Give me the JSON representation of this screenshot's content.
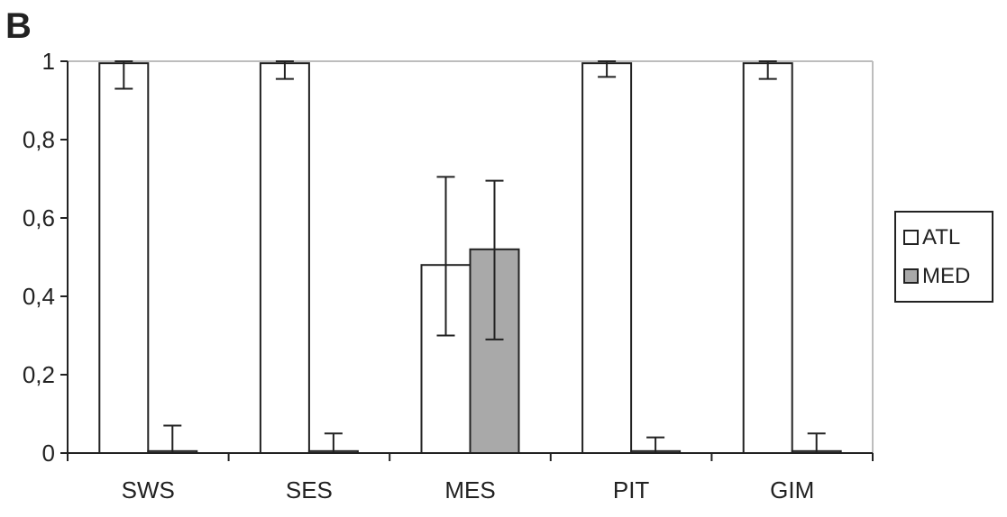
{
  "panel_label": "B",
  "chart_data": {
    "type": "bar",
    "categories": [
      "SWS",
      "SES",
      "MES",
      "PIT",
      "GIM"
    ],
    "series": [
      {
        "name": "ATL",
        "color": "#ffffff",
        "values": [
          0.995,
          0.995,
          0.48,
          0.995,
          0.995
        ],
        "err_low": [
          0.93,
          0.955,
          0.3,
          0.96,
          0.955
        ],
        "err_high": [
          1.0,
          1.0,
          0.705,
          1.0,
          1.0
        ]
      },
      {
        "name": "MED",
        "color": "#a9a9a9",
        "values": [
          0.005,
          0.005,
          0.52,
          0.005,
          0.005
        ],
        "err_low": [
          0.0,
          0.0,
          0.29,
          0.0,
          0.0
        ],
        "err_high": [
          0.07,
          0.05,
          0.695,
          0.04,
          0.05
        ]
      }
    ],
    "ylim": [
      0,
      1
    ],
    "yticks": [
      0,
      0.2,
      0.4,
      0.6,
      0.8,
      1
    ],
    "ytick_labels": [
      "0",
      "0,2",
      "0,4",
      "0,6",
      "0,8",
      "1"
    ],
    "title": "",
    "xlabel": "",
    "ylabel": "",
    "grid": false,
    "legend_position": "right"
  }
}
